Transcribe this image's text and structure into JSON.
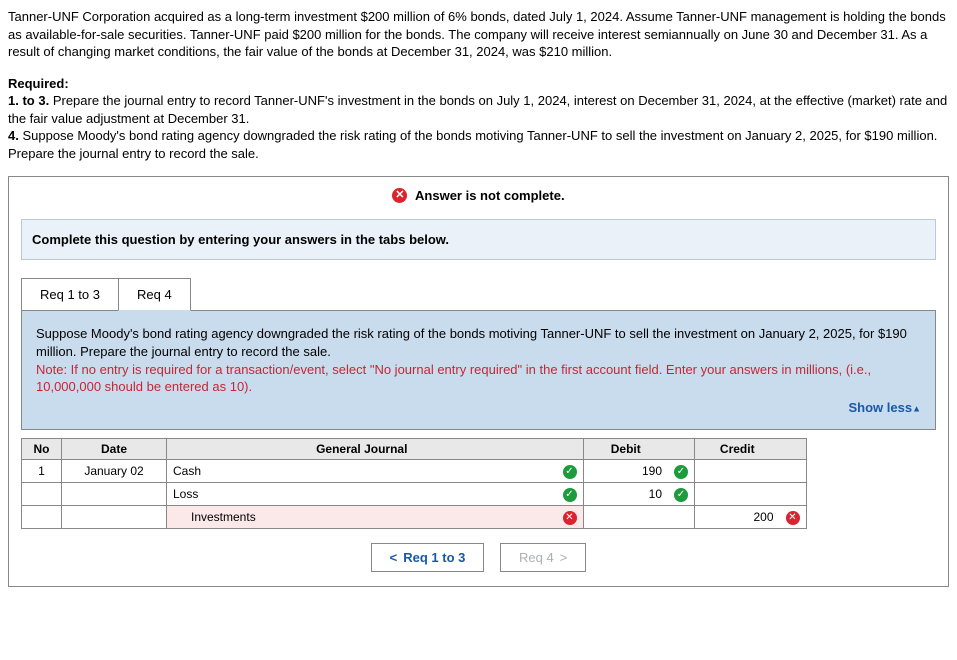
{
  "intro": "Tanner-UNF Corporation acquired as a long-term investment $200 million of 6% bonds, dated July 1, 2024. Assume Tanner-UNF management is holding the bonds as available-for-sale securities. Tanner-UNF paid $200 million for the bonds. The company will receive interest semiannually on June 30 and December 31. As a result of changing market conditions, the fair value of the bonds at December 31, 2024, was $210 million.",
  "required": {
    "title": "Required:",
    "line1": "1. to 3. Prepare the journal entry to record Tanner-UNF's investment in the bonds on July 1, 2024, interest on December 31, 2024, at the effective (market) rate and the fair value adjustment at December 31.",
    "line2": "4. Suppose Moody's bond rating agency downgraded the risk rating of the bonds motiving Tanner-UNF to sell the investment on January 2, 2025, for $190 million. Prepare the journal entry to record the sale."
  },
  "status": {
    "icon_glyph": "✕",
    "text": "Answer is not complete."
  },
  "tabs_instruction": "Complete this question by entering your answers in the tabs below.",
  "tabs": {
    "tab1": "Req 1 to 3",
    "tab2": "Req 4"
  },
  "question": {
    "body": "Suppose Moody's bond rating agency downgraded the risk rating of the bonds motiving Tanner-UNF to sell the investment on January 2, 2025, for $190 million. Prepare the journal entry to record the sale.",
    "note": "Note: If no entry is required for a transaction/event, select \"No journal entry required\" in the first account field. Enter your answers in millions, (i.e., 10,000,000 should be entered as 10)."
  },
  "show_less": "Show less",
  "table": {
    "headers": {
      "no": "No",
      "date": "Date",
      "gj": "General Journal",
      "debit": "Debit",
      "credit": "Credit"
    },
    "rows": [
      {
        "no": "1",
        "date": "January 02",
        "account": "Cash",
        "indent": false,
        "mark": "ok",
        "debit": "190",
        "debit_mark": "ok",
        "credit": "",
        "pink": false
      },
      {
        "no": "",
        "date": "",
        "account": "Loss",
        "indent": false,
        "mark": "ok",
        "debit": "10",
        "debit_mark": "ok",
        "credit": "",
        "pink": false
      },
      {
        "no": "",
        "date": "",
        "account": "Investments",
        "indent": true,
        "mark": "bad",
        "debit": "",
        "debit_mark": "",
        "credit": "200",
        "credit_mark": "bad",
        "pink": true
      }
    ]
  },
  "nav": {
    "prev": "Req 1 to 3",
    "next": "Req 4"
  }
}
